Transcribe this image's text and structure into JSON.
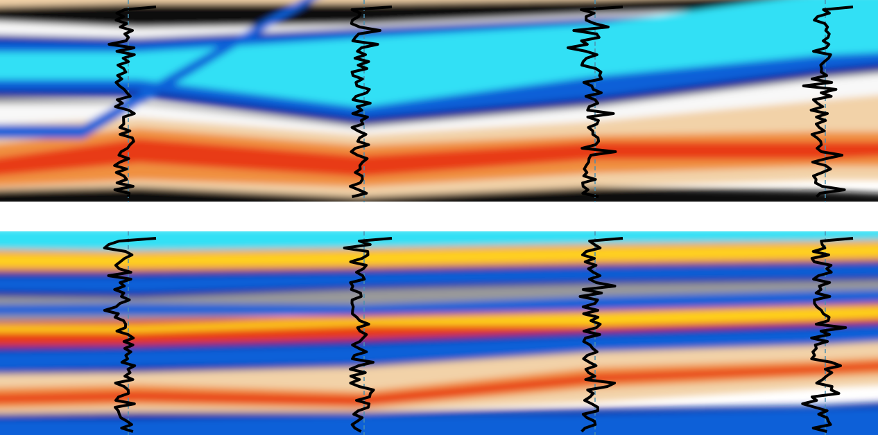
{
  "figure": {
    "panels": [
      "top-seismic-section",
      "bottom-seismic-section"
    ],
    "well_count": 4,
    "colors": {
      "cyan": "#33e0f5",
      "blue": "#1060d8",
      "dark_blue": "#0a1e9a",
      "black": "#0a0a0a",
      "gray": "#9a9a9a",
      "white": "#f8f8f8",
      "cream": "#f2d2a8",
      "orange": "#f09040",
      "red": "#e83a18",
      "yellow": "#ffd21a",
      "log_trace": "#000000",
      "background": "#ffffff"
    }
  }
}
